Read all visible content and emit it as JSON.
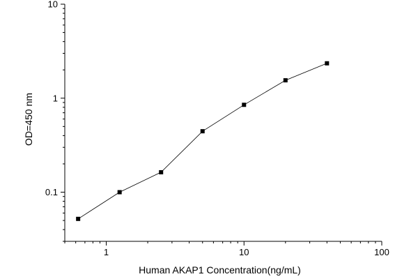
{
  "chart_data": {
    "type": "line",
    "xlabel": "Human AKAP1 Concentration(ng/mL)",
    "ylabel": "OD=450 nm",
    "xscale": "log",
    "yscale": "log",
    "xlim": [
      0.5,
      100
    ],
    "ylim": [
      0.03,
      10
    ],
    "grid": false,
    "legend": "none",
    "xticks": [
      {
        "value": 1,
        "label": "1"
      },
      {
        "value": 10,
        "label": "10"
      },
      {
        "value": 100,
        "label": "100"
      }
    ],
    "yticks": [
      {
        "value": 0.1,
        "label": "0.1"
      },
      {
        "value": 1,
        "label": "1"
      },
      {
        "value": 10,
        "label": "10"
      }
    ],
    "series": [
      {
        "x": [
          0.625,
          1.25,
          2.5,
          5,
          10,
          20,
          40
        ],
        "y": [
          0.052,
          0.1,
          0.163,
          0.445,
          0.85,
          1.55,
          2.35
        ],
        "color": "#000000",
        "marker": "square"
      }
    ]
  }
}
